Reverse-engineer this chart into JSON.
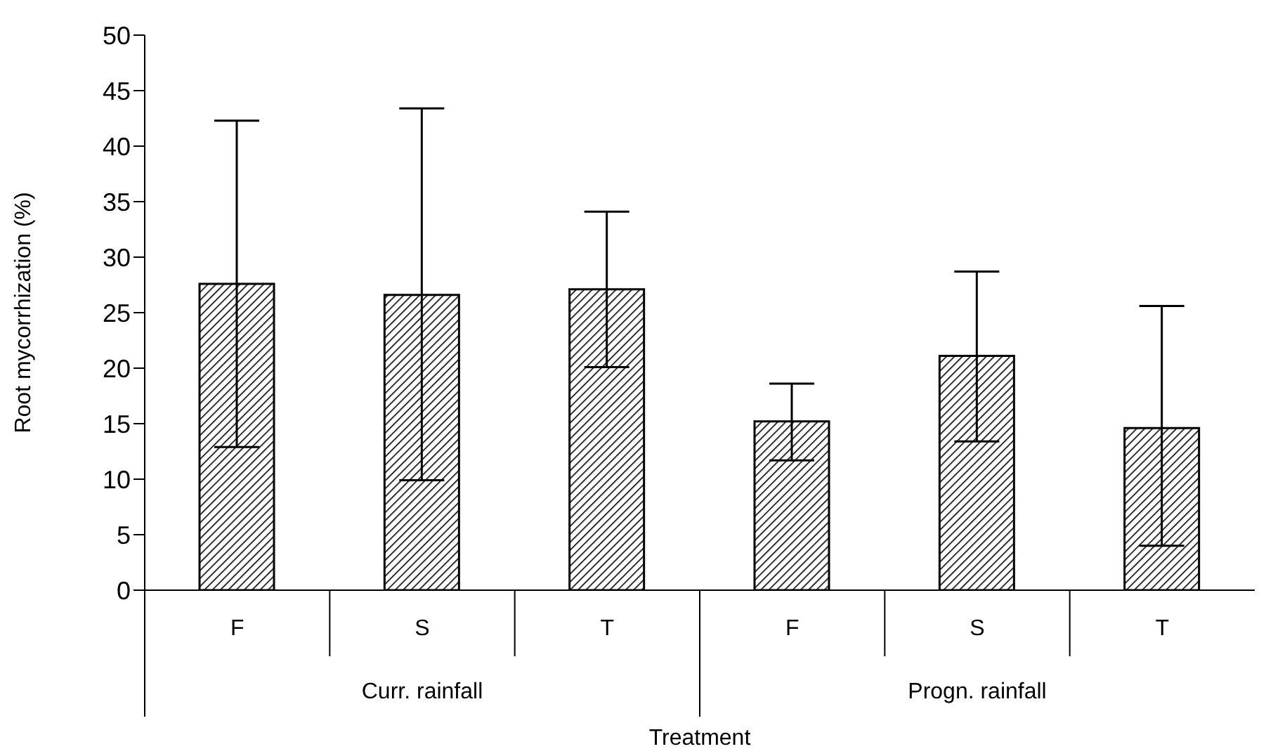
{
  "chart_data": {
    "type": "bar",
    "xlabel": "Treatment",
    "ylabel": "Root mycorrhization (%)",
    "categories": [
      "F",
      "S",
      "T",
      "F",
      "S",
      "T"
    ],
    "values": [
      27.6,
      26.6,
      27.1,
      15.2,
      21.1,
      14.6
    ],
    "errors": [
      [
        12.9,
        42.3
      ],
      [
        9.9,
        43.4
      ],
      [
        20.1,
        34.1
      ],
      [
        11.7,
        18.6
      ],
      [
        13.4,
        28.7
      ],
      [
        4.0,
        25.6
      ]
    ],
    "color": "#000000",
    "ylim": [
      0,
      50
    ],
    "yticks": [
      0,
      5,
      10,
      15,
      20,
      25,
      30,
      35,
      40,
      45,
      50
    ],
    "annotations": [
      "Curr. rainfall",
      "Progn. rainfall"
    ],
    "grid": false
  }
}
